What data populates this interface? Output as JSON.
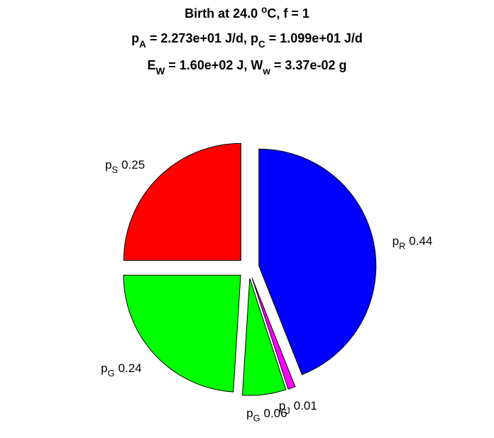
{
  "chart_data": {
    "type": "pie",
    "title": [
      [
        {
          "text": "Birth at 24.0 "
        },
        {
          "sup": "o"
        },
        {
          "text": "C, f = 1"
        }
      ],
      [
        {
          "text": "p"
        },
        {
          "sub": "A"
        },
        {
          "text": " = 2.273e+01 J/d, p"
        },
        {
          "sub": "C"
        },
        {
          "text": " = 1.099e+01 J/d"
        }
      ],
      [
        {
          "text": "E"
        },
        {
          "sub": "W"
        },
        {
          "text": " = 1.60e+02 J, W"
        },
        {
          "sub": "w"
        },
        {
          "text": " = 3.37e-02 g"
        }
      ]
    ],
    "labels": [
      [
        {
          "text": "p"
        },
        {
          "sub": "R"
        }
      ],
      [
        {
          "text": "p"
        },
        {
          "sub": "J"
        }
      ],
      [
        {
          "text": "p"
        },
        {
          "sub": "G"
        }
      ],
      [
        {
          "text": "p"
        },
        {
          "sub": "G"
        }
      ],
      [
        {
          "text": "p"
        },
        {
          "sub": "S"
        }
      ]
    ],
    "values": [
      0.44,
      0.01,
      0.06,
      0.24,
      0.25
    ],
    "colors": [
      "#0000ff",
      "#ff00ff",
      "#00ff00",
      "#00ff00",
      "#ff0000"
    ],
    "exploded": true
  }
}
